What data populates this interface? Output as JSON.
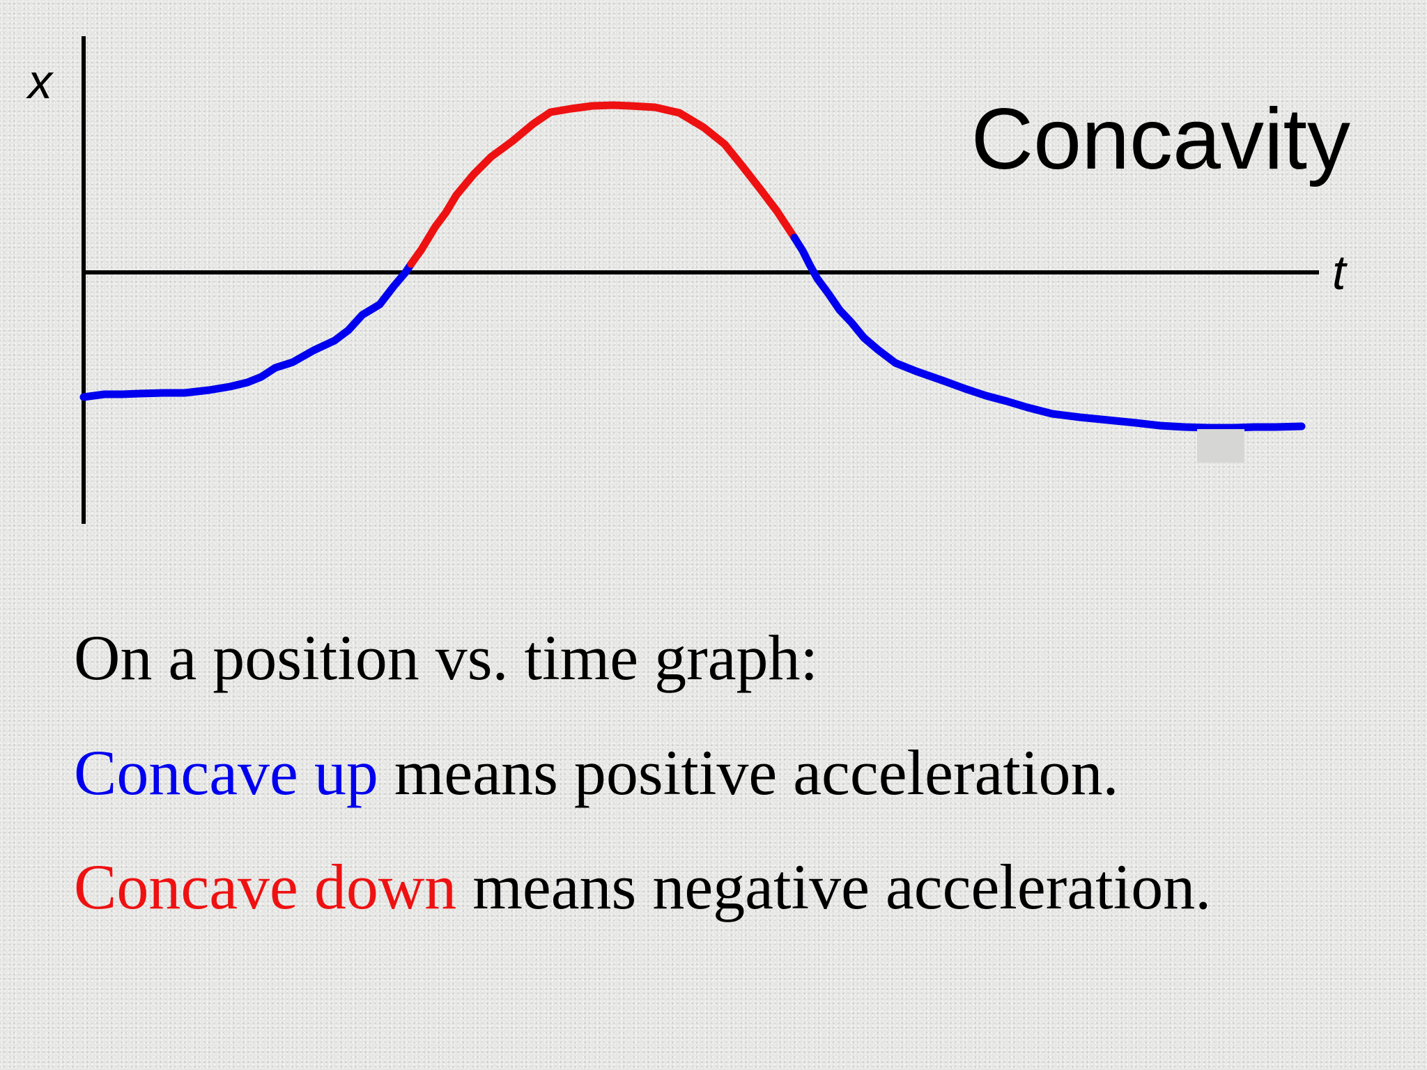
{
  "slide": {
    "title": "Concavity",
    "x_axis_label": "t",
    "y_axis_label": "x",
    "colors": {
      "concave_up": "#0000ee",
      "concave_down": "#ee1111",
      "axis": "#000000",
      "background": "#e6e6e4"
    },
    "lines": [
      {
        "text": "On a position vs. time graph:"
      },
      {
        "highlight": "Concave up",
        "rest": " means positive acceleration."
      },
      {
        "highlight": "Concave down",
        "rest": " means negative acceleration."
      }
    ]
  }
}
